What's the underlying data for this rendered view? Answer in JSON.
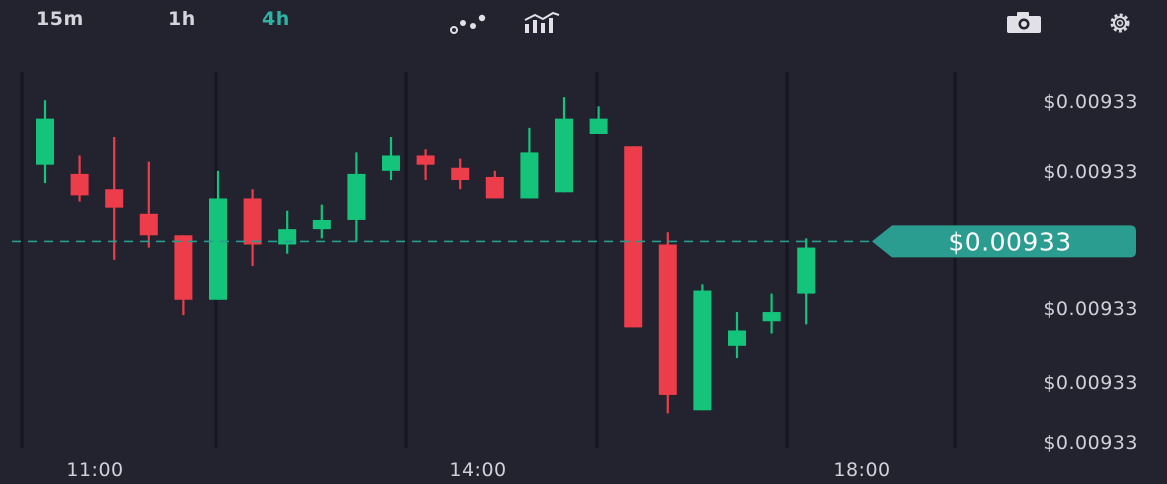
{
  "toolbar": {
    "timeframes": [
      "15m",
      "1h",
      "4h"
    ],
    "active_timeframe": "4h",
    "icons": [
      "indicators-icon",
      "chart-type-icon",
      "camera-icon",
      "settings-icon"
    ]
  },
  "colors": {
    "background": "#23222f",
    "up": "#13c47a",
    "down": "#ee3d4a",
    "accent": "#2a9c90",
    "grid": "#161620",
    "text": "#cfd0d8"
  },
  "chart_data": {
    "type": "candlestick",
    "y_tick_labels": [
      "$0.00933",
      "$0.00933",
      "$0.00933",
      "$0.00933",
      "$0.00933",
      "$0.00933"
    ],
    "x_tick_labels": [
      "11:00",
      "14:00",
      "18:00"
    ],
    "last_price_label": "$0.00933",
    "last_price": 51,
    "ylim": [
      0,
      100
    ],
    "candles": [
      {
        "o": 76,
        "c": 91,
        "h": 97,
        "l": 70
      },
      {
        "o": 73,
        "c": 66,
        "h": 79,
        "l": 64
      },
      {
        "o": 68,
        "c": 62,
        "h": 85,
        "l": 45
      },
      {
        "o": 60,
        "c": 53,
        "h": 77,
        "l": 49
      },
      {
        "o": 53,
        "c": 32,
        "h": 53,
        "l": 27
      },
      {
        "o": 32,
        "c": 65,
        "h": 74,
        "l": 32
      },
      {
        "o": 65,
        "c": 50,
        "h": 68,
        "l": 43
      },
      {
        "o": 50,
        "c": 55,
        "h": 61,
        "l": 47
      },
      {
        "o": 55,
        "c": 58,
        "h": 63,
        "l": 52
      },
      {
        "o": 58,
        "c": 73,
        "h": 80,
        "l": 51
      },
      {
        "o": 74,
        "c": 79,
        "h": 85,
        "l": 71
      },
      {
        "o": 79,
        "c": 76,
        "h": 81,
        "l": 71
      },
      {
        "o": 75,
        "c": 71,
        "h": 78,
        "l": 68
      },
      {
        "o": 72,
        "c": 65,
        "h": 74,
        "l": 65
      },
      {
        "o": 65,
        "c": 80,
        "h": 88,
        "l": 65
      },
      {
        "o": 67,
        "c": 91,
        "h": 98,
        "l": 67
      },
      {
        "o": 86,
        "c": 91,
        "h": 95,
        "l": 86
      },
      {
        "o": 82,
        "c": 23,
        "h": 82,
        "l": 23
      },
      {
        "o": 50,
        "c": 1,
        "h": 54,
        "l": -5
      },
      {
        "o": -4,
        "c": 35,
        "h": 37,
        "l": -4
      },
      {
        "o": 17,
        "c": 22,
        "h": 28,
        "l": 13
      },
      {
        "o": 25,
        "c": 28,
        "h": 34,
        "l": 21
      },
      {
        "o": 34,
        "c": 49,
        "h": 52,
        "l": 24
      }
    ]
  }
}
